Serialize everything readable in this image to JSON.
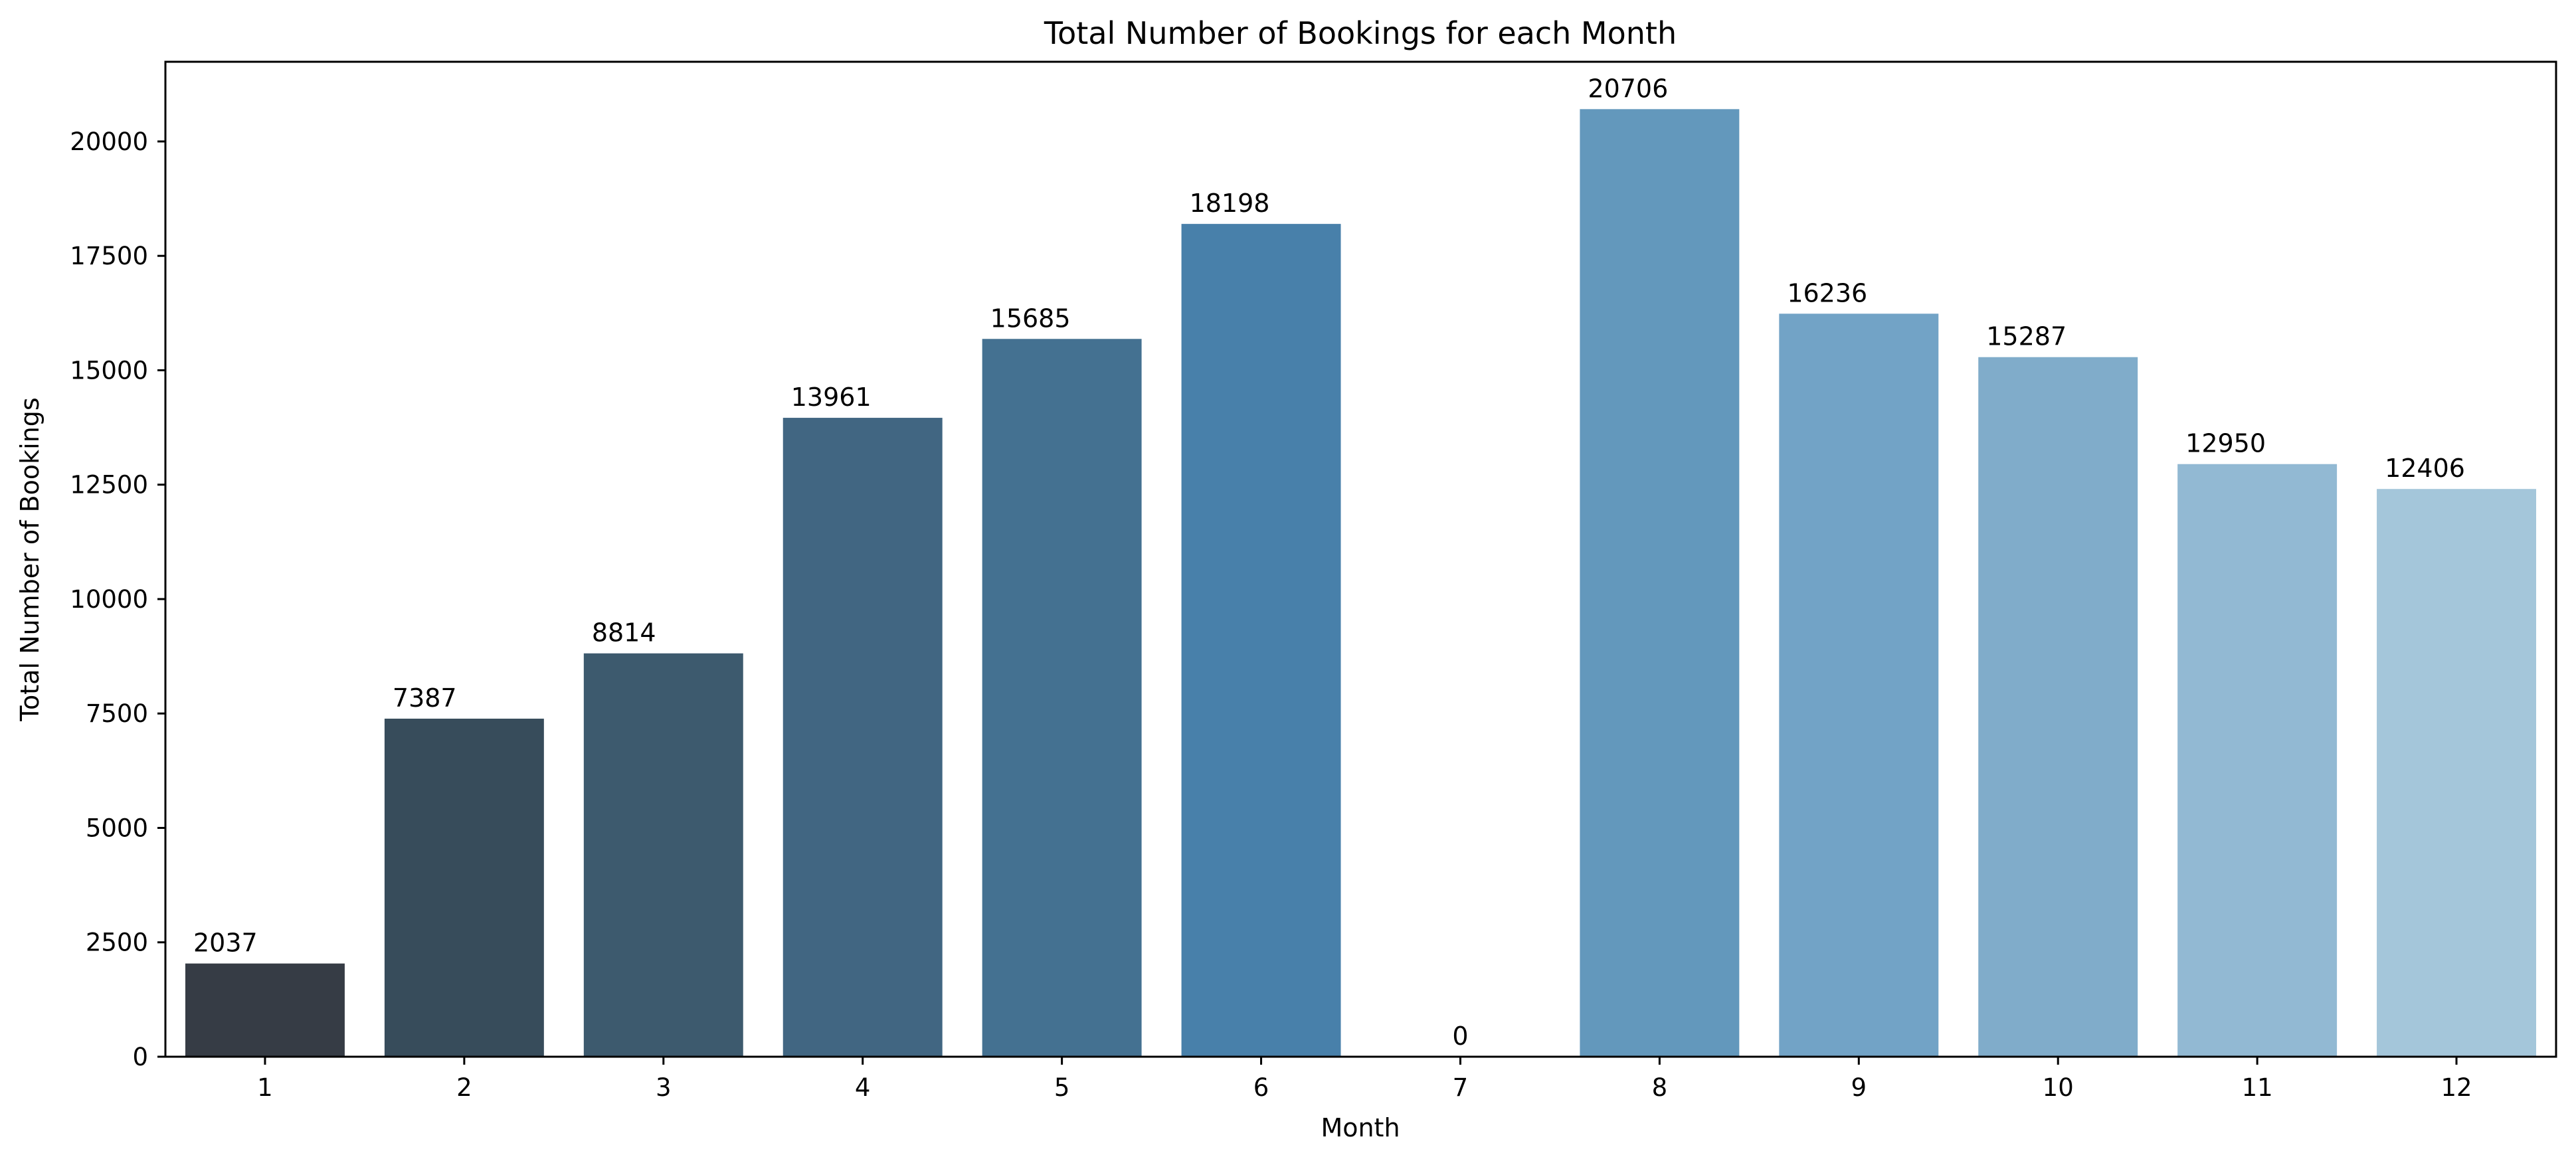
{
  "chart_data": {
    "type": "bar",
    "title": "Total Number of Bookings for each Month",
    "xlabel": "Month",
    "ylabel": "Total Number of Bookings",
    "categories": [
      "1",
      "2",
      "3",
      "4",
      "5",
      "6",
      "7",
      "8",
      "9",
      "10",
      "11",
      "12"
    ],
    "values": [
      2037,
      7387,
      8814,
      13961,
      15685,
      18198,
      0,
      20706,
      16236,
      15287,
      12950,
      12406
    ],
    "data_labels": [
      "2037",
      "7387",
      "8814",
      "13961",
      "15685",
      "18198",
      "0",
      "20706",
      "16236",
      "15287",
      "12950",
      "12406"
    ],
    "y_ticks": [
      0,
      2500,
      5000,
      7500,
      10000,
      12500,
      15000,
      17500,
      20000
    ],
    "y_tick_labels": [
      "0",
      "2500",
      "5000",
      "7500",
      "10000",
      "12500",
      "15000",
      "17500",
      "20000"
    ],
    "ylim": [
      0,
      21741
    ],
    "grid": false,
    "colors": [
      "#363c45",
      "#374c5b",
      "#3d5a6e",
      "#416682",
      "#447191",
      "#4880aa",
      "#5d93bd",
      "#6398bc",
      "#72a3c6",
      "#80acca",
      "#92b9d3",
      "#a4c6da"
    ]
  }
}
